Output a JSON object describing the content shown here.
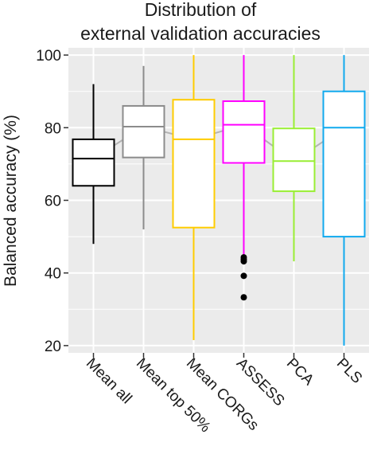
{
  "chart_data": {
    "type": "box",
    "title": [
      "Distribution of",
      "external validation accuracies"
    ],
    "xlabel": "",
    "ylabel": "Balanced accuracy (%)",
    "ylim": [
      18,
      102
    ],
    "yticks": [
      20,
      40,
      60,
      80,
      100
    ],
    "grid": true,
    "legend": "none",
    "background": "#ebebeb",
    "grid_color": "#ffffff",
    "mean_line_color": "#b3b3b3",
    "categories": [
      "Mean all",
      "Mean top 50%",
      "Mean CORGs",
      "ASSESS",
      "PCA",
      "PLS"
    ],
    "series": [
      {
        "category": "Mean all",
        "color": "#000000",
        "whisker_low": 48,
        "q1": 64,
        "median": 71.5,
        "q3": 76.8,
        "whisker_high": 92,
        "mean": 71.5,
        "outliers": []
      },
      {
        "category": "Mean top 50%",
        "color": "#8c8c8c",
        "whisker_low": 52,
        "q1": 71.8,
        "median": 80.3,
        "q3": 86,
        "whisker_high": 97,
        "mean": 80.3,
        "outliers": []
      },
      {
        "category": "Mean CORGs",
        "color": "#ffcc00",
        "whisker_low": 21.5,
        "q1": 52.5,
        "median": 76.8,
        "q3": 87.7,
        "whisker_high": 100,
        "mean": 76.8,
        "outliers": []
      },
      {
        "category": "ASSESS",
        "color": "#ff00ff",
        "whisker_low": 45,
        "q1": 70.3,
        "median": 80.8,
        "q3": 87.3,
        "whisker_high": 100,
        "mean": 80.8,
        "outliers": [
          44.3,
          43.7,
          43.2,
          39.2,
          33.3
        ]
      },
      {
        "category": "PCA",
        "color": "#99ee33",
        "whisker_low": 43.2,
        "q1": 62.5,
        "median": 70.8,
        "q3": 79.8,
        "whisker_high": 100,
        "mean": 70.8,
        "outliers": []
      },
      {
        "category": "PLS",
        "color": "#11aaee",
        "whisker_low": 20,
        "q1": 50,
        "median": 80,
        "q3": 90,
        "whisker_high": 100,
        "mean": 80,
        "outliers": []
      }
    ]
  }
}
